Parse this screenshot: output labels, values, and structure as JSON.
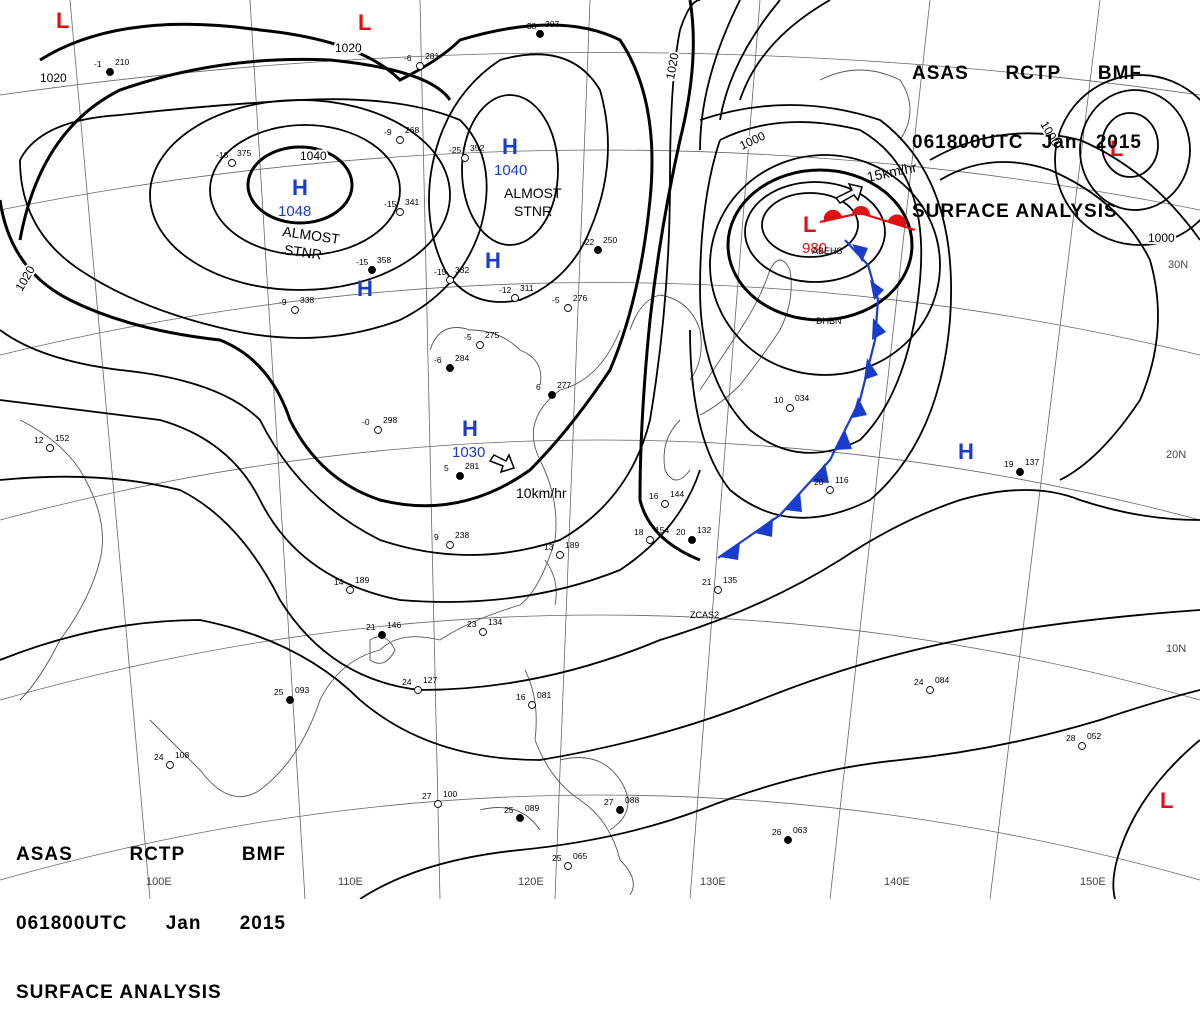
{
  "header": {
    "agency": "ASAS",
    "station": "RCTP",
    "office": "BMF",
    "datetime": "061800UTC",
    "month": "Jan",
    "year": "2015",
    "product": "SURFACE ANALYSIS"
  },
  "pressure_centers": [
    {
      "type": "H",
      "value": "1048",
      "label_color": "#1a3ccc"
    },
    {
      "type": "H",
      "value": "1040",
      "label_color": "#1a3ccc"
    },
    {
      "type": "H",
      "value": "1030",
      "label_color": "#1a3ccc"
    },
    {
      "type": "L",
      "value": "980",
      "label_color": "#e01010"
    }
  ],
  "annotations": {
    "stationary_1": "ALMOST\nSTNR",
    "stationary_2": "ALMOST\nSTNR",
    "motion_1": "15km/hr",
    "motion_2": "10km/hr"
  },
  "isobar_labels": [
    "1020",
    "1020",
    "1020",
    "1040",
    "1000",
    "1000",
    "1000",
    "1020"
  ],
  "longitude_labels": [
    "110E",
    "120E",
    "130E",
    "140E",
    "150E",
    "100E"
  ],
  "latitude_labels": [
    "30N",
    "20N",
    "10N"
  ],
  "station_samples": [
    {
      "t": "-38",
      "p": "307"
    },
    {
      "t": "-25",
      "p": "352"
    },
    {
      "t": "-15",
      "p": "341"
    },
    {
      "t": "-15",
      "p": "358"
    },
    {
      "t": "-15",
      "p": "332"
    },
    {
      "t": "-12",
      "p": "311"
    },
    {
      "t": "-22",
      "p": "250"
    },
    {
      "t": "-9",
      "p": "338"
    },
    {
      "t": "-16",
      "p": "375"
    },
    {
      "t": "-6",
      "p": "284"
    },
    {
      "t": "-0",
      "p": "298"
    },
    {
      "t": "12",
      "p": "152"
    },
    {
      "t": "5",
      "p": "281"
    },
    {
      "t": "9",
      "p": "238"
    },
    {
      "t": "14",
      "p": "189"
    },
    {
      "t": "21",
      "p": "146"
    },
    {
      "t": "23",
      "p": "134"
    },
    {
      "t": "24",
      "p": "127"
    },
    {
      "t": "25",
      "p": "093"
    },
    {
      "t": "24",
      "p": "108"
    },
    {
      "t": "27",
      "p": "100"
    },
    {
      "t": "25",
      "p": "089"
    },
    {
      "t": "16",
      "p": "081"
    },
    {
      "t": "25",
      "p": "065"
    },
    {
      "t": "26",
      "p": "063"
    },
    {
      "t": "28",
      "p": "052"
    },
    {
      "t": "24",
      "p": "084"
    },
    {
      "t": "19",
      "p": "137"
    },
    {
      "t": "20",
      "p": "116"
    },
    {
      "t": "21",
      "p": "135"
    },
    {
      "t": "20",
      "p": "132"
    },
    {
      "t": "18",
      "p": "154"
    },
    {
      "t": "16",
      "p": "144"
    },
    {
      "t": "-1",
      "p": "210"
    },
    {
      "t": "-6",
      "p": "281"
    },
    {
      "t": "-9",
      "p": "268"
    },
    {
      "t": "6",
      "p": "277"
    },
    {
      "t": "-5",
      "p": "276"
    },
    {
      "t": "-5",
      "p": "275"
    },
    {
      "t": "27",
      "p": "088"
    },
    {
      "t": "13",
      "p": "189"
    },
    {
      "t": "10",
      "p": "034"
    }
  ],
  "station_ids": [
    "ZCAS2",
    "ABEHS",
    "DHBN"
  ],
  "colors": {
    "isobar": "#000000",
    "high": "#1a3ccc",
    "low": "#e01010",
    "cold_front": "#1a3ccc",
    "warm_front": "#e01010",
    "grid": "#666666",
    "coast": "#555555"
  }
}
